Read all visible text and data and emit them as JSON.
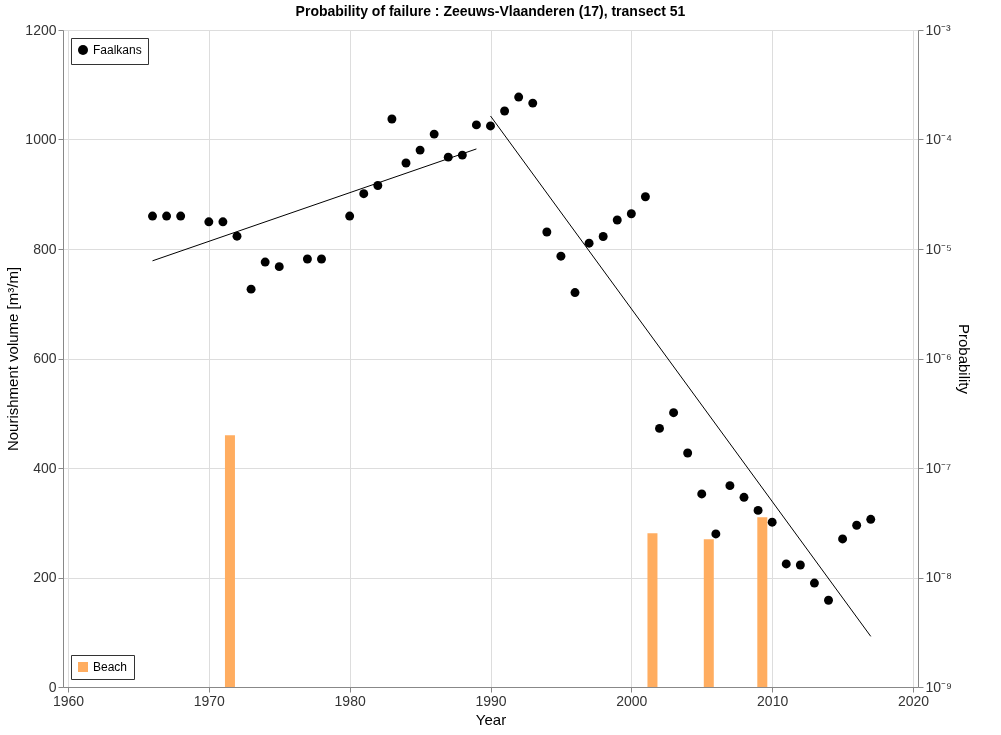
{
  "chart_data": {
    "type": "scatter",
    "title": "Probability of failure : Zeeuws-Vlaanderen (17), transect 51",
    "xlabel": "Year",
    "ylabel": "Nourishment volume [m³/m]",
    "y2label": "Probability",
    "xlim": [
      1960,
      2020
    ],
    "xticks": [
      1960,
      1970,
      1980,
      1990,
      2000,
      2010,
      2020
    ],
    "ylim": [
      0,
      1200
    ],
    "yticks": [
      0,
      200,
      400,
      600,
      800,
      1000,
      1200
    ],
    "y2lim": [
      1e-09,
      0.001
    ],
    "y2ticks": [
      {
        "value": 1e-09,
        "label": "10⁻⁹"
      },
      {
        "value": 1e-08,
        "label": "10⁻⁸"
      },
      {
        "value": 1e-07,
        "label": "10⁻⁷"
      },
      {
        "value": 1e-06,
        "label": "10⁻⁶"
      },
      {
        "value": 1e-05,
        "label": "10⁻⁵"
      },
      {
        "value": 0.0001,
        "label": "10⁻⁴"
      },
      {
        "value": 0.001,
        "label": "10⁻³"
      }
    ],
    "log": "y2",
    "grid": true,
    "legend": "top left",
    "marker": "circle",
    "series": [
      {
        "name": "Beach",
        "type": "bar",
        "color": "#ffad60",
        "x": [
          1971.5,
          2001.5,
          2005.5,
          2009.3
        ],
        "values": [
          460,
          281,
          270,
          310
        ]
      },
      {
        "name": "Faalkans",
        "axis": "y2",
        "color": "#000000",
        "x": [
          1966,
          1967,
          1968,
          1970,
          1971,
          1972,
          1973,
          1974,
          1975,
          1977,
          1978,
          1980,
          1981,
          1982,
          1983,
          1984,
          1985,
          1986,
          1987,
          1988,
          1989,
          1990,
          1991,
          1992,
          1993,
          1994,
          1995,
          1996,
          1997,
          1998,
          1999,
          2000,
          2001,
          2002,
          2003,
          2004,
          2005,
          2006,
          2007,
          2008,
          2009,
          2010,
          2011,
          2012,
          2013,
          2014,
          2015,
          2016,
          2017
        ],
        "values": [
          2e-05,
          2e-05,
          2e-05,
          1.77e-05,
          1.77e-05,
          1.31e-05,
          4.3e-06,
          7.6e-06,
          6.9e-06,
          8.1e-06,
          8.1e-06,
          2e-05,
          3.2e-05,
          3.8e-05,
          0.000154,
          6.1e-05,
          8e-05,
          0.000112,
          6.9e-05,
          7.2e-05,
          0.000136,
          0.000133,
          0.000182,
          0.000244,
          0.000215,
          1.43e-05,
          8.6e-06,
          4e-06,
          1.13e-05,
          1.3e-05,
          1.84e-05,
          2.1e-05,
          3e-05,
          2.3e-07,
          3.2e-07,
          1.37e-07,
          5.8e-08,
          2.5e-08,
          6.9e-08,
          5.4e-08,
          4.1e-08,
          3.2e-08,
          1.33e-08,
          1.3e-08,
          8.9e-09,
          6.2e-09,
          2.25e-08,
          3e-08,
          3.4e-08
        ]
      },
      {
        "type": "line",
        "axis": "y2",
        "color": "#000000",
        "marker": "none",
        "x": [
          1966,
          1989
        ],
        "values": [
          7.8e-06,
          8.2e-05
        ]
      },
      {
        "type": "line",
        "axis": "y2",
        "color": "#000000",
        "marker": "none",
        "x": [
          1990,
          2017
        ],
        "values": [
          0.000164,
          2.9e-09
        ]
      }
    ]
  }
}
